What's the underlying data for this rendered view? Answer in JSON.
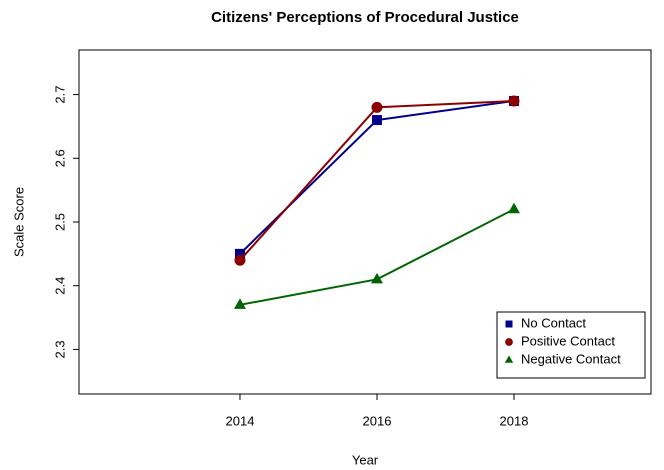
{
  "chart_data": {
    "type": "line",
    "title": "Citizens' Perceptions of Procedural Justice",
    "x_label": "Year",
    "y_label": "Scale Score",
    "x": [
      2014,
      2016,
      2018
    ],
    "series": [
      {
        "name": "No Contact",
        "color": "#00008b",
        "marker": "square",
        "values": [
          2.45,
          2.66,
          2.69
        ]
      },
      {
        "name": "Positive Contact",
        "color": "#8b0000",
        "marker": "circle",
        "values": [
          2.44,
          2.68,
          2.69
        ]
      },
      {
        "name": "Negative Contact",
        "color": "#006400",
        "marker": "triangle",
        "values": [
          2.37,
          2.41,
          2.52
        ]
      }
    ],
    "xlim": [
      2011.65,
      2020
    ],
    "xticks": [
      2014,
      2016,
      2018
    ],
    "ylim": [
      2.23,
      2.77
    ],
    "yticks": [
      2.3,
      2.4,
      2.5,
      2.6,
      2.7
    ],
    "legend": "bottom-right"
  }
}
